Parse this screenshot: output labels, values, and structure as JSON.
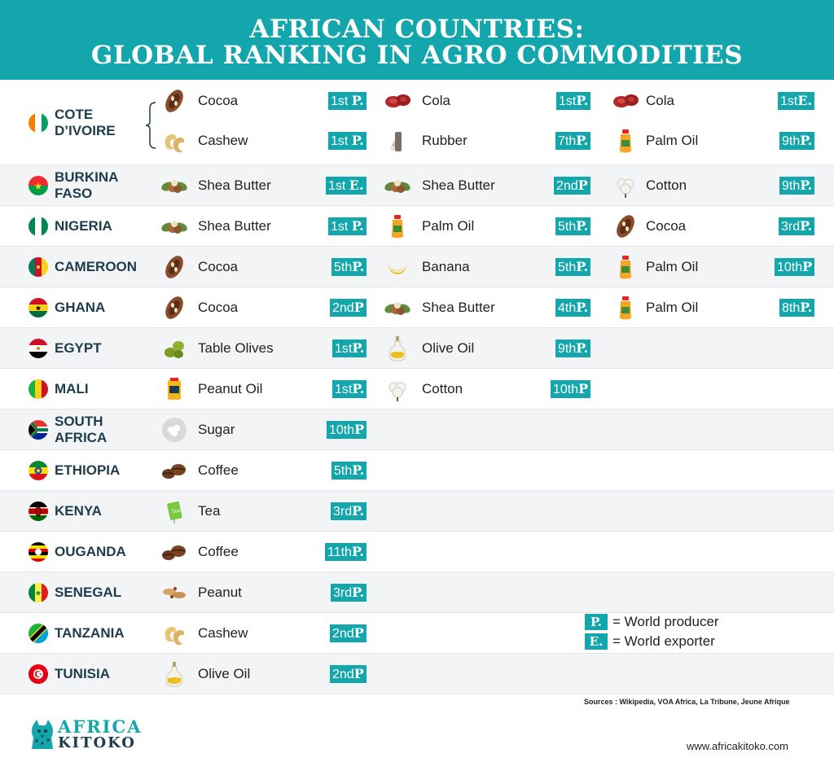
{
  "title": {
    "line1": "AFRICAN COUNTRIES:",
    "line2": "GLOBAL RANKING IN AGRO COMMODITIES"
  },
  "rows": [
    {
      "country": "COTE D'IVOIRE",
      "flag": "cote-divoire",
      "country_lines": [
        "COTE",
        "D’IVOIRE"
      ]
    },
    {
      "country": "BURKINA FASO",
      "flag": "burkina-faso",
      "country_lines": [
        "BURKINA",
        "FASO"
      ]
    },
    {
      "country": "NIGERIA",
      "flag": "nigeria",
      "country_lines": [
        "NIGERIA"
      ]
    },
    {
      "country": "CAMEROON",
      "flag": "cameroon",
      "country_lines": [
        "CAMEROON"
      ]
    },
    {
      "country": "GHANA",
      "flag": "ghana",
      "country_lines": [
        "GHANA"
      ]
    },
    {
      "country": "EGYPT",
      "flag": "egypt",
      "country_lines": [
        "EGYPT"
      ]
    },
    {
      "country": "MALI",
      "flag": "mali",
      "country_lines": [
        "MALI"
      ]
    },
    {
      "country": "SOUTH AFRICA",
      "flag": "south-africa",
      "country_lines": [
        "SOUTH",
        "AFRICA"
      ]
    },
    {
      "country": "ETHIOPIA",
      "flag": "ethiopia",
      "country_lines": [
        "ETHIOPIA"
      ]
    },
    {
      "country": "KENYA",
      "flag": "kenya",
      "country_lines": [
        "KENYA"
      ]
    },
    {
      "country": "OUGANDA",
      "flag": "uganda",
      "country_lines": [
        "OUGANDA"
      ]
    },
    {
      "country": "SENEGAL",
      "flag": "senegal",
      "country_lines": [
        "SENEGAL"
      ]
    },
    {
      "country": "TANZANIA",
      "flag": "tanzania",
      "country_lines": [
        "TANZANIA"
      ]
    },
    {
      "country": "TUNISIA",
      "flag": "tunisia",
      "country_lines": [
        "TUNISIA"
      ]
    }
  ],
  "entries": [
    {
      "row": 0,
      "line": 0,
      "col": 0,
      "crop": "Cocoa",
      "rank": "1st ",
      "type": "P.",
      "icon": "cocoa-icon"
    },
    {
      "row": 0,
      "line": 0,
      "col": 1,
      "crop": "Cola",
      "rank": "1st",
      "type": "P.",
      "icon": "cola-icon"
    },
    {
      "row": 0,
      "line": 0,
      "col": 2,
      "crop": "Cola",
      "rank": "1st",
      "type": "E.",
      "icon": "cola-icon"
    },
    {
      "row": 0,
      "line": 1,
      "col": 0,
      "crop": "Cashew",
      "rank": "1st ",
      "type": "P.",
      "icon": "cashew-icon"
    },
    {
      "row": 0,
      "line": 1,
      "col": 1,
      "crop": "Rubber",
      "rank": "7th",
      "type": "P.",
      "icon": "rubber-icon"
    },
    {
      "row": 0,
      "line": 1,
      "col": 2,
      "crop": "Palm Oil",
      "rank": "9th",
      "type": "P.",
      "icon": "palm-oil-icon"
    },
    {
      "row": 1,
      "col": 0,
      "crop": "Shea Butter",
      "rank": "1st ",
      "type": "E.",
      "icon": "shea-butter-icon"
    },
    {
      "row": 1,
      "col": 1,
      "crop": "Shea Butter",
      "rank": "2nd",
      "type": "P",
      "icon": "shea-butter-icon"
    },
    {
      "row": 1,
      "col": 2,
      "crop": "Cotton",
      "rank": "9th",
      "type": "P.",
      "icon": "cotton-icon"
    },
    {
      "row": 2,
      "col": 0,
      "crop": "Shea Butter",
      "rank": "1st ",
      "type": "P.",
      "icon": "shea-butter-icon"
    },
    {
      "row": 2,
      "col": 1,
      "crop": "Palm Oil",
      "rank": "5th",
      "type": "P.",
      "icon": "palm-oil-icon"
    },
    {
      "row": 2,
      "col": 2,
      "crop": "Cocoa",
      "rank": "3rd",
      "type": "P.",
      "icon": "cocoa-icon"
    },
    {
      "row": 3,
      "col": 0,
      "crop": "Cocoa",
      "rank": "5th",
      "type": "P.",
      "icon": "cocoa-icon"
    },
    {
      "row": 3,
      "col": 1,
      "crop": "Banana",
      "rank": "5th",
      "type": "P.",
      "icon": "banana-icon"
    },
    {
      "row": 3,
      "col": 2,
      "crop": "Palm Oil",
      "rank": "10th",
      "type": "P",
      "icon": "palm-oil-icon"
    },
    {
      "row": 4,
      "col": 0,
      "crop": "Cocoa",
      "rank": "2nd",
      "type": "P",
      "icon": "cocoa-icon"
    },
    {
      "row": 4,
      "col": 1,
      "crop": "Shea Butter",
      "rank": "4th",
      "type": "P.",
      "icon": "shea-butter-icon"
    },
    {
      "row": 4,
      "col": 2,
      "crop": "Palm Oil",
      "rank": "8th",
      "type": "P.",
      "icon": "palm-oil-icon"
    },
    {
      "row": 5,
      "col": 0,
      "crop": "Table Olives",
      "rank": "1st",
      "type": "P.",
      "icon": "olives-icon"
    },
    {
      "row": 5,
      "col": 1,
      "crop": "Olive Oil",
      "rank": "9th",
      "type": "P.",
      "icon": "olive-oil-icon"
    },
    {
      "row": 6,
      "col": 0,
      "crop": "Peanut Oil",
      "rank": "1st",
      "type": "P.",
      "icon": "peanut-oil-icon"
    },
    {
      "row": 6,
      "col": 1,
      "crop": "Cotton",
      "rank": "10th",
      "type": "P",
      "icon": "cotton-icon"
    },
    {
      "row": 7,
      "col": 0,
      "crop": "Sugar",
      "rank": "10th",
      "type": "P",
      "icon": "sugar-icon"
    },
    {
      "row": 8,
      "col": 0,
      "crop": "Coffee",
      "rank": "5th",
      "type": "P.",
      "icon": "coffee-icon"
    },
    {
      "row": 9,
      "col": 0,
      "crop": "Tea",
      "rank": "3rd",
      "type": "P.",
      "icon": "tea-icon"
    },
    {
      "row": 10,
      "col": 0,
      "crop": "Coffee",
      "rank": "11th",
      "type": "P.",
      "icon": "coffee-icon"
    },
    {
      "row": 11,
      "col": 0,
      "crop": "Peanut",
      "rank": "3rd",
      "type": "P.",
      "icon": "peanut-icon"
    },
    {
      "row": 12,
      "col": 0,
      "crop": "Cashew",
      "rank": "2nd",
      "type": "P",
      "icon": "cashew-icon"
    },
    {
      "row": 13,
      "col": 0,
      "crop": "Olive Oil",
      "rank": "2nd",
      "type": "P",
      "icon": "olive-oil-icon"
    }
  ],
  "legend": [
    {
      "key": "P.",
      "label": "= World producer"
    },
    {
      "key": "E.",
      "label": "= World exporter"
    }
  ],
  "sources": "Sources : Wikipedia, VOA Africa, La Tribune, Jeune Afrique",
  "website": "www.africakitoko.com",
  "logo": {
    "line1": "AFRICA",
    "line2": "KITOKO"
  },
  "colors": {
    "accent": "#14a6ad",
    "text": "#1d3c4c"
  }
}
